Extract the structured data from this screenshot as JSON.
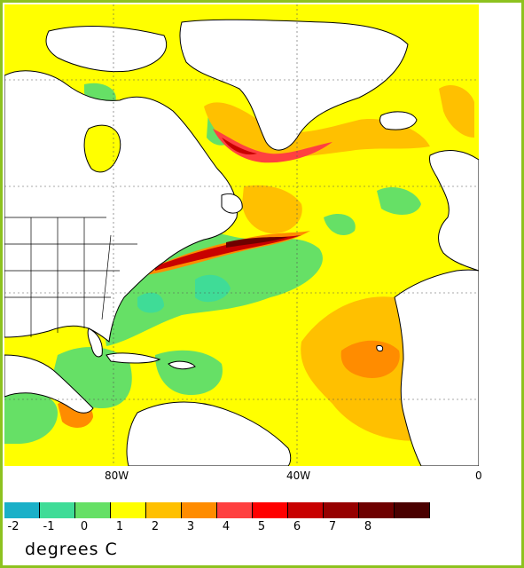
{
  "map": {
    "longitude_labels": [
      "80W",
      "40W",
      "0"
    ],
    "features": [
      "North America",
      "Greenland",
      "Europe",
      "Africa",
      "South America",
      "Atlantic Ocean"
    ]
  },
  "colorbar": {
    "tick_labels": [
      "-2",
      "-1",
      "0",
      "1",
      "2",
      "3",
      "4",
      "5",
      "6",
      "7",
      "8"
    ],
    "colors": [
      "#1ab0c8",
      "#3fdc97",
      "#66e066",
      "#ffff00",
      "#ffc000",
      "#ff8c00",
      "#ff4040",
      "#ff0000",
      "#c80000",
      "#960000",
      "#6e0000",
      "#4a0000"
    ],
    "units": "degrees C"
  },
  "colors": {
    "border": "#8dc21f",
    "land": "#ffffff",
    "ocean_base": "#ffff00"
  }
}
